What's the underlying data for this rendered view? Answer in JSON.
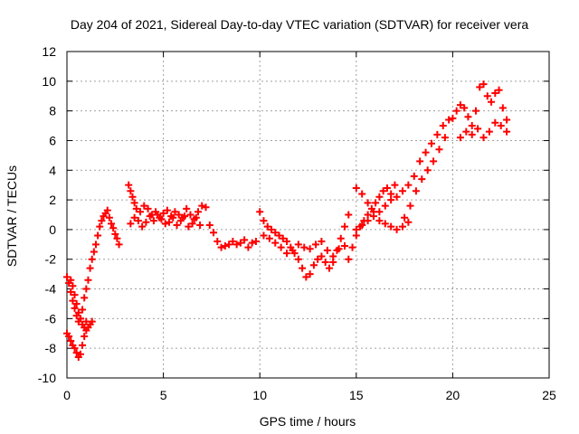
{
  "chart_data": {
    "type": "scatter",
    "title": "Day 204 of 2021, Sidereal Day-to-day VTEC variation (SDTVAR) for receiver vera",
    "xlabel": "GPS time / hours",
    "ylabel": "SDTVAR / TECUs",
    "xlim": [
      0,
      25
    ],
    "ylim": [
      -10,
      12
    ],
    "xticks": [
      0,
      5,
      10,
      15,
      20,
      25
    ],
    "yticks": [
      -10,
      -8,
      -6,
      -4,
      -2,
      0,
      2,
      4,
      6,
      8,
      10,
      12
    ],
    "grid": true,
    "marker": "+",
    "color": "#ff0000",
    "series": [
      {
        "name": "SDTVAR",
        "x": [
          0.0,
          0.1,
          0.2,
          0.3,
          0.4,
          0.5,
          0.6,
          0.7,
          0.8,
          0.9,
          1.0,
          1.1,
          1.2,
          1.3,
          1.4,
          1.5,
          1.6,
          1.7,
          1.8,
          1.9,
          2.0,
          2.1,
          2.2,
          2.3,
          2.4,
          2.5,
          2.6,
          2.7,
          0.0,
          0.1,
          0.2,
          0.3,
          0.4,
          0.5,
          0.6,
          0.7,
          0.8,
          0.9,
          1.0,
          1.1,
          1.2,
          1.3,
          0.2,
          0.3,
          0.4,
          0.5,
          0.6,
          0.7,
          0.8,
          0.9,
          1.0,
          3.2,
          3.3,
          3.4,
          3.5,
          3.6,
          3.8,
          4.0,
          4.2,
          4.4,
          4.6,
          4.8,
          5.0,
          5.2,
          5.4,
          5.6,
          5.8,
          6.0,
          6.2,
          6.4,
          6.6,
          6.8,
          7.0,
          7.2,
          3.3,
          3.5,
          3.7,
          3.9,
          4.1,
          4.3,
          4.5,
          4.7,
          4.9,
          5.1,
          5.3,
          5.5,
          5.7,
          5.9,
          6.1,
          6.3,
          6.5,
          6.7,
          6.9,
          7.4,
          7.6,
          7.8,
          8.0,
          8.2,
          8.4,
          8.6,
          8.8,
          9.0,
          9.2,
          9.4,
          9.6,
          9.8,
          10.0,
          10.2,
          10.4,
          10.6,
          10.8,
          11.0,
          11.2,
          11.4,
          11.6,
          11.8,
          12.0,
          12.2,
          12.4,
          12.6,
          12.8,
          13.0,
          13.2,
          13.4,
          13.6,
          13.8,
          14.0,
          14.2,
          14.4,
          14.6,
          10.2,
          10.5,
          10.8,
          11.1,
          11.4,
          11.7,
          12.0,
          12.3,
          12.6,
          12.9,
          13.2,
          13.5,
          13.8,
          14.1,
          14.4,
          14.6,
          14.8,
          15.0,
          15.2,
          15.4,
          15.6,
          15.8,
          16.0,
          16.2,
          16.4,
          16.6,
          16.8,
          17.0,
          15.0,
          15.3,
          15.6,
          15.9,
          16.2,
          16.5,
          16.8,
          17.1,
          17.4,
          17.7,
          15.0,
          15.3,
          15.6,
          15.9,
          16.2,
          16.5,
          16.8,
          17.1,
          17.4,
          17.7,
          18.0,
          18.3,
          18.6,
          18.9,
          19.2,
          19.5,
          19.8,
          17.5,
          17.8,
          18.1,
          18.4,
          18.7,
          19.0,
          19.3,
          19.6,
          20.0,
          20.2,
          20.4,
          20.6,
          20.8,
          21.0,
          21.2,
          21.4,
          21.6,
          21.8,
          22.0,
          22.2,
          22.4,
          22.6,
          22.8,
          20.4,
          20.7,
          21.0,
          21.3,
          21.6,
          21.9,
          22.2,
          22.5,
          22.8
        ],
        "y": [
          -3.2,
          -3.6,
          -4.2,
          -4.8,
          -5.3,
          -5.8,
          -6.2,
          -6.0,
          -5.4,
          -4.6,
          -4.0,
          -3.4,
          -2.6,
          -2.0,
          -1.5,
          -1.0,
          -0.4,
          0.2,
          0.6,
          0.9,
          1.1,
          1.3,
          0.8,
          0.4,
          0.1,
          -0.3,
          -0.6,
          -1.0,
          -7.0,
          -7.2,
          -7.5,
          -7.8,
          -8.0,
          -8.3,
          -8.6,
          -8.4,
          -7.8,
          -7.2,
          -6.8,
          -6.6,
          -6.4,
          -6.2,
          -3.4,
          -3.8,
          -4.4,
          -5.0,
          -5.6,
          -6.0,
          -6.4,
          -6.6,
          -6.2,
          3.0,
          2.6,
          2.2,
          1.8,
          1.4,
          1.2,
          1.6,
          1.4,
          1.0,
          1.2,
          0.8,
          1.1,
          1.3,
          0.9,
          1.2,
          1.0,
          0.8,
          1.4,
          1.0,
          0.7,
          1.2,
          1.6,
          1.5,
          0.4,
          0.8,
          0.6,
          0.2,
          0.5,
          0.9,
          0.6,
          1.0,
          0.7,
          0.4,
          0.5,
          0.8,
          0.3,
          0.6,
          0.9,
          0.2,
          0.4,
          0.8,
          0.3,
          0.3,
          -0.2,
          -0.8,
          -1.2,
          -1.1,
          -1.0,
          -0.8,
          -1.0,
          -0.9,
          -0.7,
          -1.2,
          -0.9,
          -0.8,
          1.2,
          0.6,
          0.2,
          0.0,
          -0.2,
          -0.4,
          -0.6,
          -0.8,
          -1.2,
          -1.6,
          -2.0,
          -2.6,
          -3.2,
          -3.0,
          -2.4,
          -2.0,
          -1.8,
          -2.2,
          -2.6,
          -2.2,
          -1.4,
          -0.6,
          0.2,
          1.0,
          -0.4,
          -0.6,
          -0.9,
          -1.2,
          -1.6,
          -1.4,
          -1.0,
          -1.2,
          -1.3,
          -1.0,
          -0.8,
          -1.4,
          -1.8,
          -1.3,
          -1.1,
          -2.0,
          -1.2,
          -0.4,
          0.2,
          0.6,
          1.0,
          1.4,
          1.8,
          2.2,
          2.6,
          2.8,
          2.4,
          3.0,
          2.8,
          2.4,
          1.8,
          1.2,
          0.6,
          0.4,
          0.2,
          0.0,
          0.2,
          0.5,
          0.0,
          0.3,
          0.6,
          0.9,
          1.2,
          1.6,
          2.0,
          2.2,
          2.6,
          3.0,
          3.6,
          4.6,
          5.2,
          5.8,
          6.4,
          7.0,
          7.4,
          0.8,
          1.6,
          2.6,
          3.4,
          4.0,
          4.6,
          5.4,
          6.2,
          7.5,
          8.0,
          8.4,
          8.2,
          7.6,
          7.0,
          8.0,
          9.6,
          9.8,
          9.0,
          8.6,
          9.2,
          9.4,
          8.2,
          7.4,
          6.2,
          6.6,
          6.4,
          6.8,
          6.2,
          6.6,
          7.2,
          7.0,
          6.6
        ]
      }
    ]
  }
}
